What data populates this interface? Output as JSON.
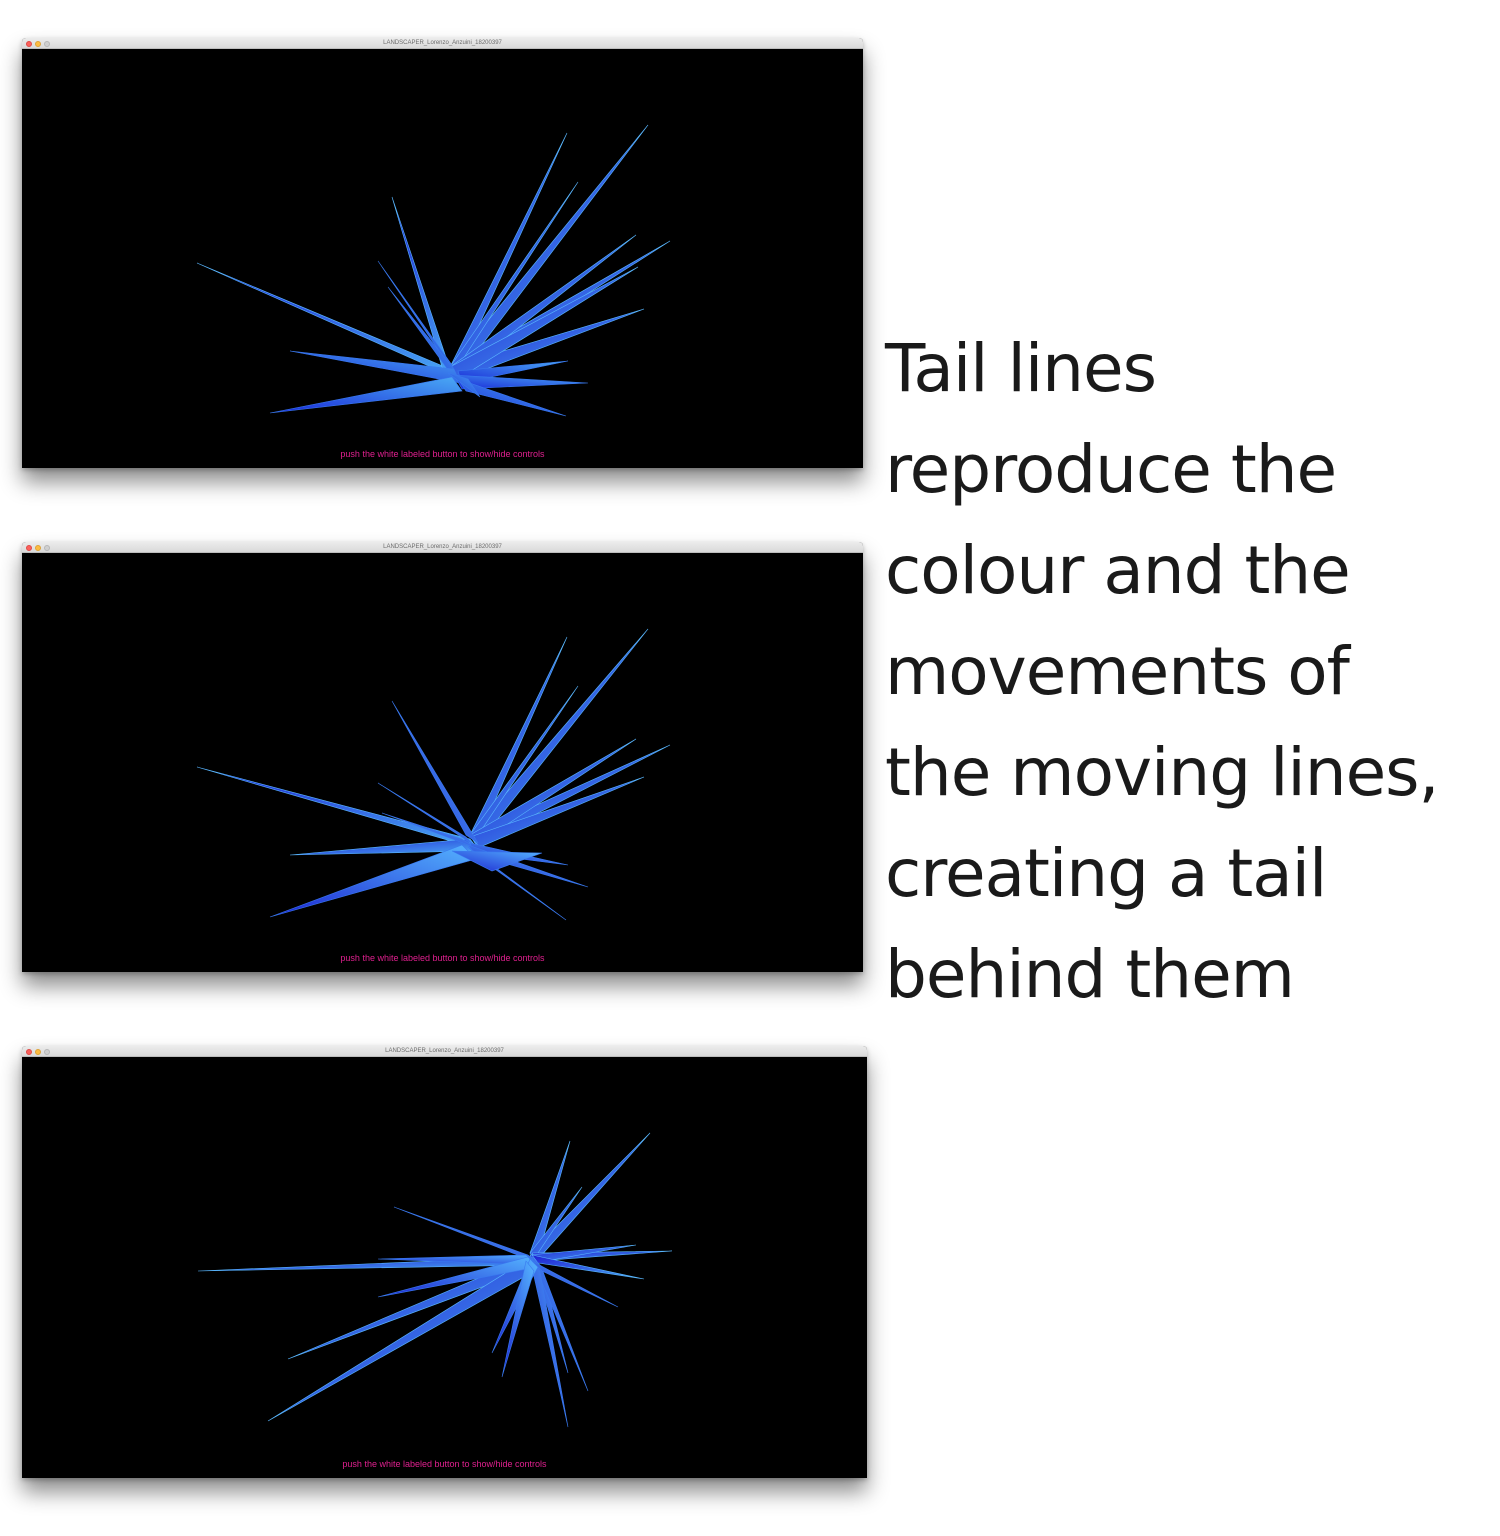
{
  "window": {
    "title": "LANDSCAPER_Lorenzo_Anzuini_18200397",
    "hint": "push the white labeled button to show/hide controls"
  },
  "caption": {
    "lines": [
      "Tail lines",
      "reproduce the",
      "colour and the",
      "movements of",
      "the moving lines,",
      "creating a tail",
      "behind them"
    ]
  },
  "colors": {
    "background": "#000000",
    "hint": "#e0208f",
    "spike_light": "#4aaaf5",
    "spike_dark": "#1e1ed2"
  },
  "icons": [
    "close-icon",
    "minimize-icon",
    "maximize-icon"
  ]
}
